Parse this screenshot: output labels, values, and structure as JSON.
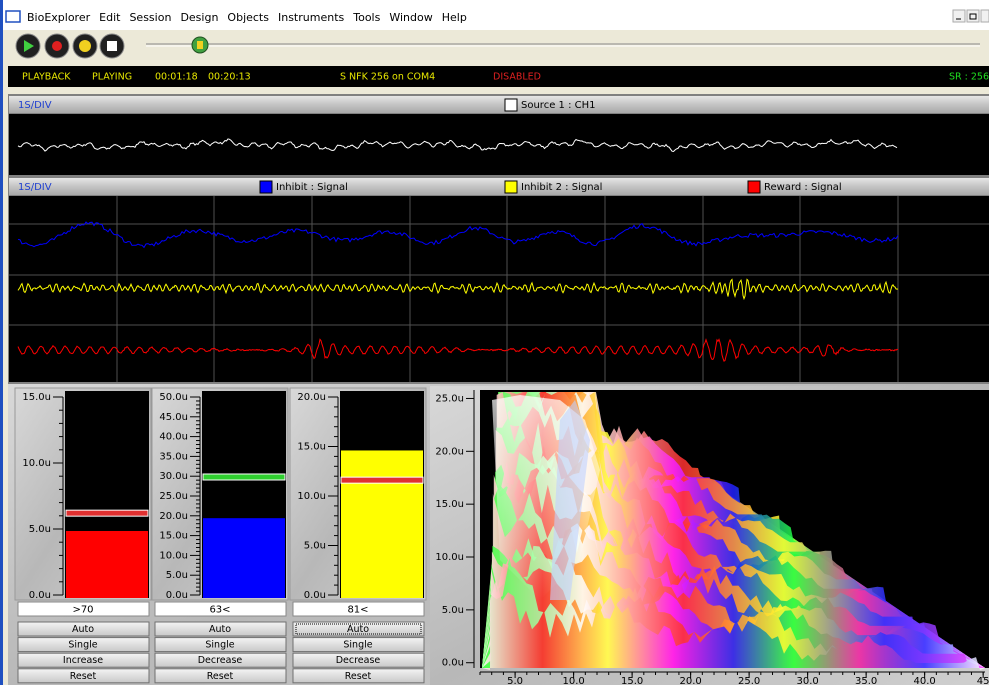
{
  "menu": {
    "items": [
      "BioExplorer",
      "Edit",
      "Session",
      "Design",
      "Objects",
      "Instruments",
      "Tools",
      "Window",
      "Help"
    ]
  },
  "status": {
    "mode": "PLAYBACK",
    "state": "PLAYING",
    "elapsed": "00:01:18",
    "total": "00:20:13",
    "device": "S NFK 256 on COM4",
    "feedback": "DISABLED",
    "sample_rate": "SR : 256"
  },
  "raw_panel": {
    "timebase": "1S/DIV",
    "legend": [
      {
        "label": "Source 1 : CH1",
        "color": "#ffffff"
      }
    ]
  },
  "filter_panel": {
    "timebase": "1S/DIV",
    "legend": [
      {
        "label": "Inhibit : Signal",
        "color": "#0000ff"
      },
      {
        "label": "Inhibit 2 : Signal",
        "color": "#ffff00"
      },
      {
        "label": "Reward : Signal",
        "color": "#ff0000"
      }
    ]
  },
  "meters": [
    {
      "range": [
        0,
        15
      ],
      "ticks": [
        {
          "value": 0,
          "label": "0.0u"
        },
        {
          "value": 5,
          "label": "5.0u"
        },
        {
          "value": 10,
          "label": "10.0u"
        },
        {
          "value": 15,
          "label": "15.0u"
        }
      ],
      "level": 4.85,
      "threshold": 6.2,
      "color": "#ff0000",
      "threshold_color": "#e03030",
      "readout": ">70",
      "buttons": [
        "Auto",
        "Single",
        "Increase",
        "Reset"
      ]
    },
    {
      "range": [
        0,
        50
      ],
      "ticks": [
        {
          "value": 0,
          "label": "0.0u"
        },
        {
          "value": 5,
          "label": "5.0u"
        },
        {
          "value": 10,
          "label": "10.0u"
        },
        {
          "value": 15,
          "label": "15.0u"
        },
        {
          "value": 20,
          "label": "20.0u"
        },
        {
          "value": 25,
          "label": "25.0u"
        },
        {
          "value": 30,
          "label": "30.0u"
        },
        {
          "value": 35,
          "label": "35.0u"
        },
        {
          "value": 40,
          "label": "40.0u"
        },
        {
          "value": 45,
          "label": "45.0u"
        },
        {
          "value": 50,
          "label": "50.0u"
        }
      ],
      "level": 19.4,
      "threshold": 29.8,
      "color": "#0000ff",
      "threshold_color": "#30d030",
      "readout": "63<",
      "buttons": [
        "Auto",
        "Single",
        "Decrease",
        "Reset"
      ]
    },
    {
      "range": [
        0,
        20
      ],
      "ticks": [
        {
          "value": 0,
          "label": "0.0u"
        },
        {
          "value": 5,
          "label": "5.0u"
        },
        {
          "value": 10,
          "label": "10.0u"
        },
        {
          "value": 15,
          "label": "15.0u"
        },
        {
          "value": 20,
          "label": "20.0u"
        }
      ],
      "level": 14.6,
      "threshold": 11.6,
      "color": "#ffff00",
      "threshold_color": "#e03030",
      "readout": "81<",
      "buttons": [
        "Auto",
        "Single",
        "Decrease",
        "Reset"
      ]
    }
  ],
  "spectrum": {
    "xlim": [
      2,
      45.5
    ],
    "xticks": [
      {
        "value": 5,
        "label": "5.0"
      },
      {
        "value": 10,
        "label": "10.0"
      },
      {
        "value": 15,
        "label": "15.0"
      },
      {
        "value": 20,
        "label": "20.0"
      },
      {
        "value": 25,
        "label": "25.0"
      },
      {
        "value": 30,
        "label": "30.0"
      },
      {
        "value": 35,
        "label": "35.0"
      },
      {
        "value": 40,
        "label": "40.0"
      },
      45
    ],
    "ylim": [
      -0.5,
      25.8
    ],
    "yticks": [
      {
        "value": 0,
        "label": "0.0u"
      },
      {
        "value": 5,
        "label": "5.0u"
      },
      {
        "value": 10,
        "label": "10.0u"
      },
      {
        "value": 15,
        "label": "15.0u"
      },
      {
        "value": 20,
        "label": "20.0u"
      },
      {
        "value": 25,
        "label": "25.0u"
      }
    ]
  }
}
